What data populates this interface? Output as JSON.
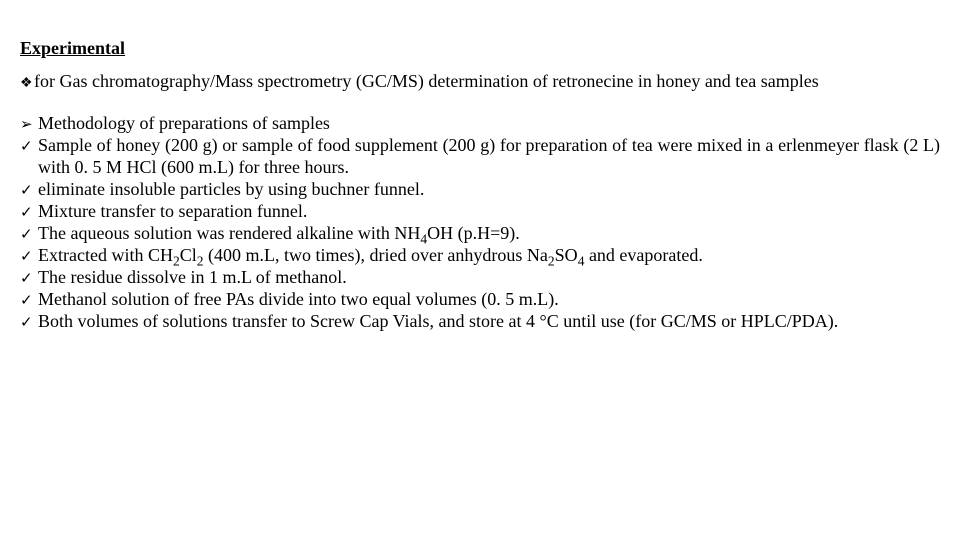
{
  "title": "Experimental",
  "subtitle": "for Gas chromatography/Mass spectrometry (GC/MS) determination of retronecine in honey and tea samples",
  "bullets": {
    "diamond": "❖",
    "arrow": "➢",
    "check": "✓"
  },
  "items": [
    {
      "bullet": "arrow",
      "text": "Methodology of preparations of samples"
    },
    {
      "bullet": "check",
      "text": "Sample of honey (200 g) or sample of food supplement (200 g) for preparation of tea were mixed in a erlenmeyer flask (2 L) with 0. 5 M HCl (600 m.L) for three hours."
    },
    {
      "bullet": "check",
      "text": "eliminate insoluble particles by using buchner funnel."
    },
    {
      "bullet": "check",
      "text": "Mixture transfer to separation funnel."
    },
    {
      "bullet": "check",
      "html": "The aqueous solution was rendered alkaline with NH<sub>4</sub>OH (p.H=9)."
    },
    {
      "bullet": "check",
      "html": "Extracted with CH<sub>2</sub>Cl<sub>2</sub> (400 m.L, two times), dried over anhydrous Na<sub>2</sub>SO<sub>4</sub> and evaporated."
    },
    {
      "bullet": "check",
      "text": "The residue dissolve in 1 m.L of methanol."
    },
    {
      "bullet": "check",
      "text": " Methanol solution of free PAs divide into two equal volumes (0. 5 m.L)."
    },
    {
      "bullet": "check",
      "text": "Both volumes of solutions transfer to Screw Cap Vials, and store at 4 °C until use (for GC/MS or HPLC/PDA)."
    }
  ]
}
